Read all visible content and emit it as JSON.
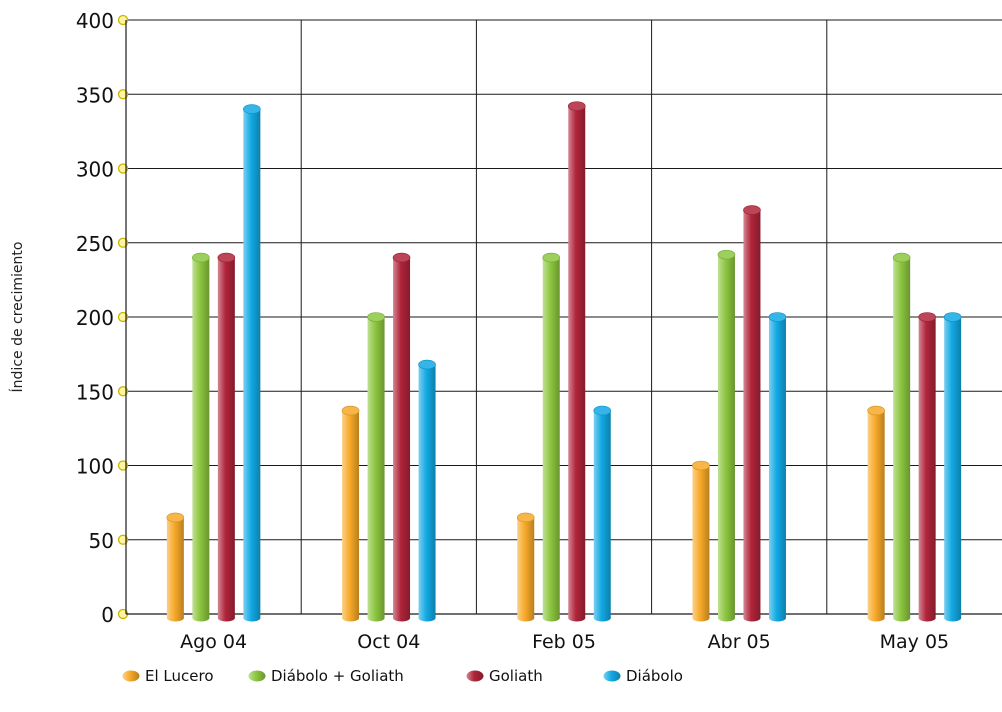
{
  "chart_data": {
    "type": "bar",
    "title": "",
    "xlabel": "",
    "ylabel": "Índice de crecimiento",
    "ylim": [
      0,
      400
    ],
    "yticks": [
      0,
      50,
      100,
      150,
      200,
      250,
      300,
      350,
      400
    ],
    "grid": true,
    "legend_position": "bottom-left",
    "categories": [
      "Ago 04",
      "Oct 04",
      "Feb 05",
      "Abr 05",
      "May 05"
    ],
    "series": [
      {
        "name": "El Lucero",
        "color": "#f7a928",
        "values": [
          65,
          137,
          65,
          100,
          137
        ]
      },
      {
        "name": "Diábolo + Goliath",
        "color": "#8cc63f",
        "values": [
          240,
          200,
          240,
          242,
          240
        ]
      },
      {
        "name": "Goliath",
        "color": "#b0243a",
        "values": [
          240,
          240,
          342,
          272,
          200
        ]
      },
      {
        "name": "Diábolo",
        "color": "#12a9e4",
        "values": [
          340,
          168,
          137,
          200,
          200
        ]
      }
    ]
  }
}
